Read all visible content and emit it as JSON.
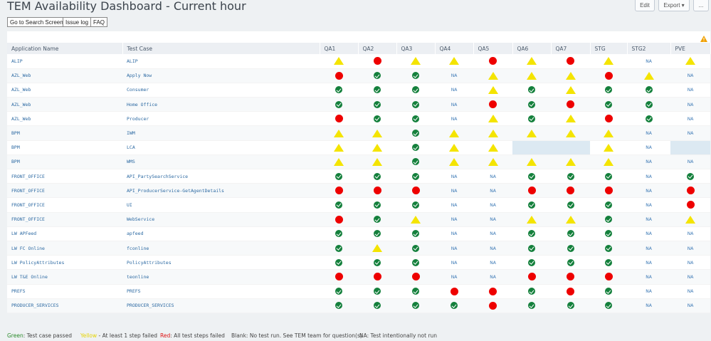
{
  "header": {
    "title": "TEM Availability Dashboard - Current hour",
    "edit_label": "Edit",
    "export_label": "Export",
    "export_caret": "▾",
    "more_label": "..."
  },
  "nav": {
    "search_label": "Go to Search Screen",
    "issue_label": "Issue log",
    "faq_label": "FAQ"
  },
  "table": {
    "columns": [
      "Application Name",
      "Test Case",
      "QA1",
      "QA2",
      "QA3",
      "QA4",
      "QA5",
      "QA6",
      "QA7",
      "STG",
      "STG2",
      "PVE"
    ],
    "rows": [
      {
        "app": "ALIP",
        "test": "ALIP",
        "status": [
          "W",
          "F",
          "W",
          "W",
          "F",
          "W",
          "F",
          "W",
          "NA",
          "W"
        ]
      },
      {
        "app": "AZL_Web",
        "test": "Apply Now",
        "status": [
          "F",
          "P",
          "P",
          "NA",
          "W",
          "W",
          "W",
          "F",
          "W",
          "NA"
        ]
      },
      {
        "app": "AZL_Web",
        "test": "Consumer",
        "status": [
          "P",
          "P",
          "P",
          "NA",
          "W",
          "P",
          "W",
          "P",
          "P",
          "NA"
        ]
      },
      {
        "app": "AZL_Web",
        "test": "Home Office",
        "status": [
          "P",
          "P",
          "P",
          "NA",
          "F",
          "P",
          "F",
          "P",
          "P",
          "NA"
        ]
      },
      {
        "app": "AZL_Web",
        "test": "Producer",
        "status": [
          "F",
          "P",
          "P",
          "NA",
          "W",
          "P",
          "W",
          "F",
          "P",
          "NA"
        ]
      },
      {
        "app": "BPM",
        "test": "IWM",
        "status": [
          "W",
          "W",
          "P",
          "W",
          "W",
          "W",
          "W",
          "W",
          "NA",
          "NA"
        ]
      },
      {
        "app": "BPM",
        "test": "LCA",
        "status": [
          "W",
          "W",
          "P",
          "W",
          "W",
          "B",
          "B",
          "W",
          "NA",
          "B"
        ]
      },
      {
        "app": "BPM",
        "test": "WMS",
        "status": [
          "W",
          "W",
          "P",
          "W",
          "W",
          "W",
          "W",
          "W",
          "NA",
          "NA"
        ]
      },
      {
        "app": "FRONT_OFFICE",
        "test": "API_PartySearchService",
        "status": [
          "P",
          "P",
          "P",
          "NA",
          "NA",
          "P",
          "P",
          "P",
          "NA",
          "P"
        ]
      },
      {
        "app": "FRONT_OFFICE",
        "test": "API_ProducerService-GetAgentDetails",
        "status": [
          "F",
          "F",
          "F",
          "NA",
          "NA",
          "F",
          "F",
          "F",
          "NA",
          "F"
        ]
      },
      {
        "app": "FRONT_OFFICE",
        "test": "UI",
        "status": [
          "P",
          "P",
          "P",
          "NA",
          "NA",
          "P",
          "P",
          "P",
          "NA",
          "F"
        ]
      },
      {
        "app": "FRONT_OFFICE",
        "test": "WebService",
        "status": [
          "F",
          "P",
          "W",
          "NA",
          "NA",
          "W",
          "W",
          "P",
          "NA",
          "W"
        ]
      },
      {
        "app": "LW APFeed",
        "test": "apfeed",
        "status": [
          "P",
          "P",
          "P",
          "NA",
          "NA",
          "P",
          "P",
          "P",
          "NA",
          "NA"
        ]
      },
      {
        "app": "LW FC Online",
        "test": "fconline",
        "status": [
          "P",
          "W",
          "P",
          "NA",
          "NA",
          "P",
          "P",
          "P",
          "NA",
          "NA"
        ]
      },
      {
        "app": "LW PolicyAttributes",
        "test": "PolicyAttributes",
        "status": [
          "P",
          "P",
          "P",
          "NA",
          "NA",
          "P",
          "P",
          "P",
          "NA",
          "NA"
        ]
      },
      {
        "app": "LW T&E Online",
        "test": "teonline",
        "status": [
          "F",
          "F",
          "F",
          "NA",
          "NA",
          "F",
          "F",
          "F",
          "NA",
          "NA"
        ]
      },
      {
        "app": "PREFS",
        "test": "PREFS",
        "status": [
          "P",
          "P",
          "P",
          "F",
          "F",
          "P",
          "F",
          "P",
          "NA",
          "NA"
        ]
      },
      {
        "app": "PRODUCER_SERVICES",
        "test": "PRODUCER_SERVICES",
        "status": [
          "P",
          "P",
          "P",
          "P",
          "F",
          "P",
          "P",
          "P",
          "NA",
          "NA"
        ]
      }
    ]
  },
  "legend": {
    "green_key": "Green",
    "green_text": ": Test case passed",
    "yellow_key": "Yellow",
    "yellow_text": " - At least 1 step failed",
    "red_key": "Red",
    "red_text": ": All test steps failed",
    "blank_text": "Blank: No test run. See TEM team for question(s)",
    "na_text": "NA: Test intentionally not run"
  },
  "colors": {
    "pass": "#14803c",
    "warn": "#f4e400",
    "fail": "#ee0000",
    "blank": "#dce9f2"
  },
  "icons": {
    "pass": "check-circle-icon",
    "warn": "warning-triangle-icon",
    "fail": "red-circle-icon"
  }
}
